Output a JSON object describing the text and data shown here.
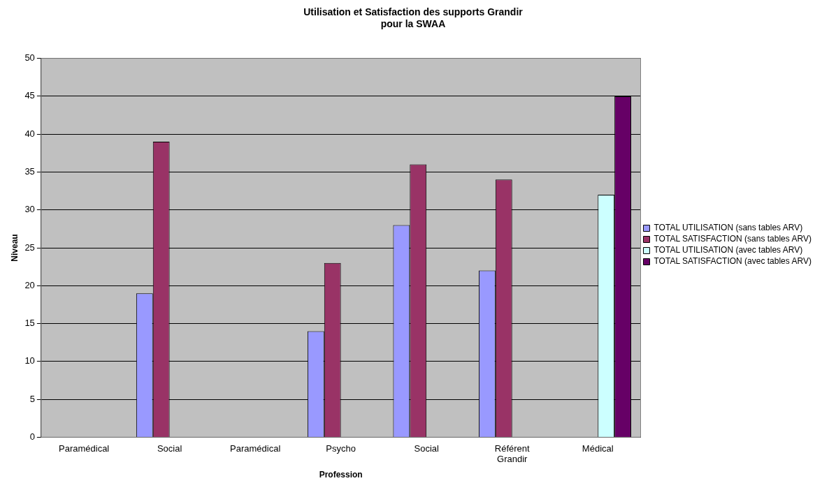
{
  "chart_data": {
    "type": "bar",
    "title": "Utilisation et Satisfaction des supports Grandir\npour la SWAA",
    "xlabel": "Profession",
    "ylabel": "Niveau",
    "categories": [
      "Paramédical",
      "Social",
      "Paramédical",
      "Psycho",
      "Social",
      "Référent Grandir",
      "Médical"
    ],
    "series": [
      {
        "name": "TOTAL UTILISATION (sans tables ARV)",
        "color": "#9999ff",
        "values": [
          null,
          19,
          null,
          14,
          28,
          22,
          null
        ]
      },
      {
        "name": "TOTAL SATISFACTION (sans tables ARV)",
        "color": "#993366",
        "values": [
          null,
          39,
          null,
          23,
          36,
          34,
          null
        ]
      },
      {
        "name": "TOTAL UTILISATION (avec tables ARV)",
        "color": "#ccffff",
        "values": [
          null,
          null,
          null,
          null,
          null,
          null,
          32
        ]
      },
      {
        "name": "TOTAL SATISFACTION (avec tables ARV)",
        "color": "#660066",
        "values": [
          null,
          null,
          null,
          null,
          null,
          null,
          45
        ]
      }
    ],
    "ylim": [
      0,
      50
    ],
    "yticks": [
      0,
      5,
      10,
      15,
      20,
      25,
      30,
      35,
      40,
      45,
      50
    ],
    "grid": "y",
    "legend": "right"
  }
}
